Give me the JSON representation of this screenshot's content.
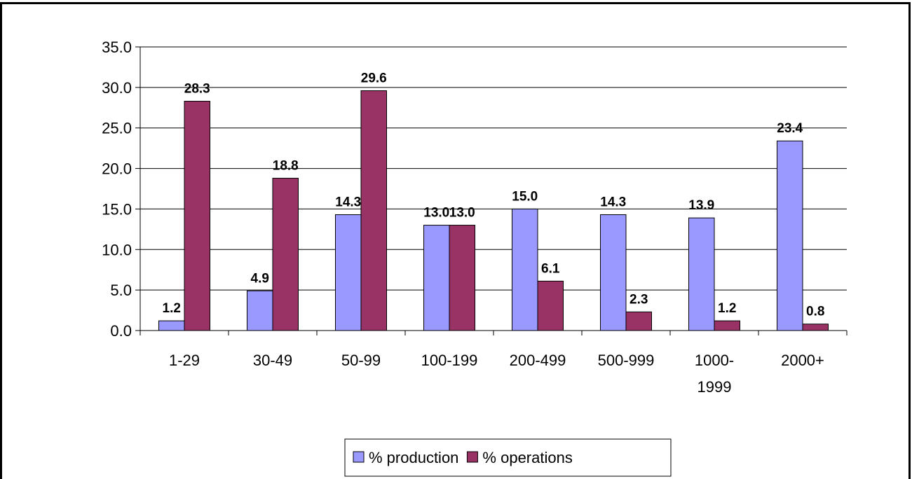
{
  "chart_data": {
    "type": "bar",
    "categories": [
      "1-29",
      "30-49",
      "50-99",
      "100-199",
      "200-499",
      "500-999",
      "1000-1999",
      "2000+"
    ],
    "series": [
      {
        "name": "% production",
        "color": "#9999ff",
        "values": [
          1.2,
          4.9,
          14.3,
          13.0,
          15.0,
          14.3,
          13.9,
          23.4
        ],
        "value_labels": [
          "1.2",
          "4.9",
          "14.3",
          "13.0",
          "15.0",
          "14.3",
          "13.9",
          "23.4"
        ]
      },
      {
        "name": "% operations",
        "color": "#993366",
        "values": [
          28.3,
          18.8,
          29.6,
          13.0,
          6.1,
          2.3,
          1.2,
          0.8
        ],
        "value_labels": [
          "28.3",
          "18.8",
          "29.6",
          "13.0",
          "6.1",
          "2.3",
          "1.2",
          "0.8"
        ]
      }
    ],
    "ylim": [
      0,
      35
    ],
    "yticks": [
      {
        "value": 0,
        "label": "0.0"
      },
      {
        "value": 5,
        "label": "5.0"
      },
      {
        "value": 10,
        "label": "10.0"
      },
      {
        "value": 15,
        "label": "15.0"
      },
      {
        "value": 20,
        "label": "20.0"
      },
      {
        "value": 25,
        "label": "25.0"
      },
      {
        "value": 30,
        "label": "30.0"
      },
      {
        "value": 35,
        "label": "35.0"
      }
    ],
    "grid": true,
    "legend": "bottom"
  }
}
